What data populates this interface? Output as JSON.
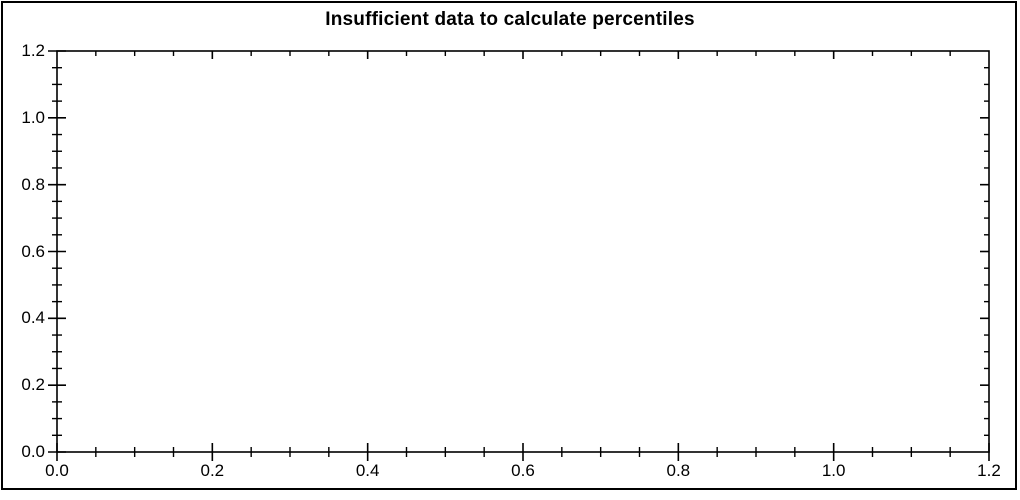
{
  "figure": {
    "background": "#ffffff",
    "border_color": "#000000"
  },
  "chart_data": {
    "type": "scatter",
    "title": "Insufficient data to calculate percentiles",
    "series": [],
    "grid": false,
    "legend": false,
    "axis_color": "#000000",
    "text_color": "#000000",
    "x_axis": {
      "min": 0.0,
      "max": 1.2,
      "major_step": 0.2,
      "minor_step": 0.05,
      "tick_labels": [
        "0.0",
        "0.2",
        "0.4",
        "0.6",
        "0.8",
        "1.0",
        "1.2"
      ]
    },
    "y_axis": {
      "min": 0.0,
      "max": 1.2,
      "major_step": 0.2,
      "minor_step": 0.05,
      "tick_labels": [
        "0.0",
        "0.2",
        "0.4",
        "0.6",
        "0.8",
        "1.0",
        "1.2"
      ]
    }
  }
}
